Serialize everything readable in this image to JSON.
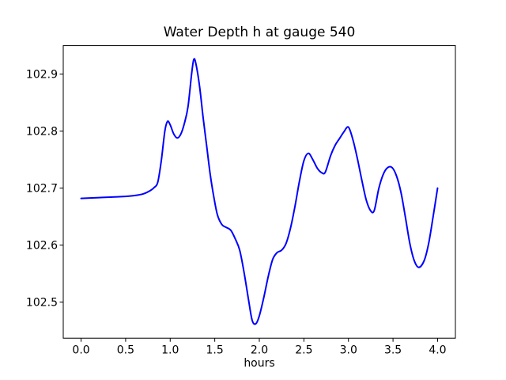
{
  "figure": {
    "background": "#ffffff",
    "text_color": "#000000"
  },
  "chart_data": {
    "type": "line",
    "title": "Water Depth h at gauge 540",
    "xlabel": "hours",
    "ylabel": "",
    "grid": false,
    "legend": false,
    "xlim": [
      -0.2,
      4.2
    ],
    "ylim": [
      102.4367,
      102.95
    ],
    "xticks": [
      0.0,
      0.5,
      1.0,
      1.5,
      2.0,
      2.5,
      3.0,
      3.5,
      4.0
    ],
    "xtick_labels": [
      "0.0",
      "0.5",
      "1.0",
      "1.5",
      "2.0",
      "2.5",
      "3.0",
      "3.5",
      "4.0"
    ],
    "yticks": [
      102.5,
      102.6,
      102.7,
      102.8,
      102.9
    ],
    "ytick_labels": [
      "102.5",
      "102.6",
      "102.7",
      "102.8",
      "102.9"
    ],
    "series": [
      {
        "name": "water depth h",
        "color": "#0000ff",
        "x": [
          0.0,
          0.15,
          0.3,
          0.45,
          0.6,
          0.7,
          0.78,
          0.82,
          0.86,
          0.9,
          0.94,
          0.97,
          1.0,
          1.04,
          1.08,
          1.12,
          1.16,
          1.2,
          1.24,
          1.265,
          1.29,
          1.33,
          1.37,
          1.41,
          1.45,
          1.49,
          1.53,
          1.58,
          1.63,
          1.68,
          1.73,
          1.78,
          1.83,
          1.88,
          1.92,
          1.96,
          2.0,
          2.05,
          2.1,
          2.15,
          2.2,
          2.25,
          2.3,
          2.35,
          2.4,
          2.45,
          2.5,
          2.55,
          2.6,
          2.65,
          2.7,
          2.74,
          2.8,
          2.85,
          2.9,
          2.95,
          3.0,
          3.05,
          3.1,
          3.15,
          3.2,
          3.25,
          3.29,
          3.34,
          3.39,
          3.44,
          3.49,
          3.54,
          3.59,
          3.64,
          3.69,
          3.74,
          3.79,
          3.85,
          3.9,
          3.95,
          4.0
        ],
        "y": [
          102.682,
          102.683,
          102.684,
          102.685,
          102.687,
          102.69,
          102.696,
          102.701,
          102.71,
          102.748,
          102.8,
          102.817,
          102.811,
          102.795,
          102.788,
          102.795,
          102.814,
          102.843,
          102.9,
          102.926,
          102.917,
          102.878,
          102.823,
          102.773,
          102.723,
          102.684,
          102.653,
          102.636,
          102.631,
          102.626,
          102.611,
          102.591,
          102.551,
          102.503,
          102.468,
          102.462,
          102.476,
          102.508,
          102.545,
          102.575,
          102.587,
          102.591,
          102.603,
          102.63,
          102.668,
          102.712,
          102.748,
          102.761,
          102.75,
          102.735,
          102.727,
          102.728,
          102.757,
          102.775,
          102.787,
          102.799,
          102.807,
          102.785,
          102.752,
          102.714,
          102.679,
          102.66,
          102.661,
          102.699,
          102.724,
          102.736,
          102.736,
          102.721,
          102.692,
          102.648,
          102.602,
          102.572,
          102.561,
          102.573,
          102.603,
          102.65,
          102.7
        ]
      }
    ]
  }
}
